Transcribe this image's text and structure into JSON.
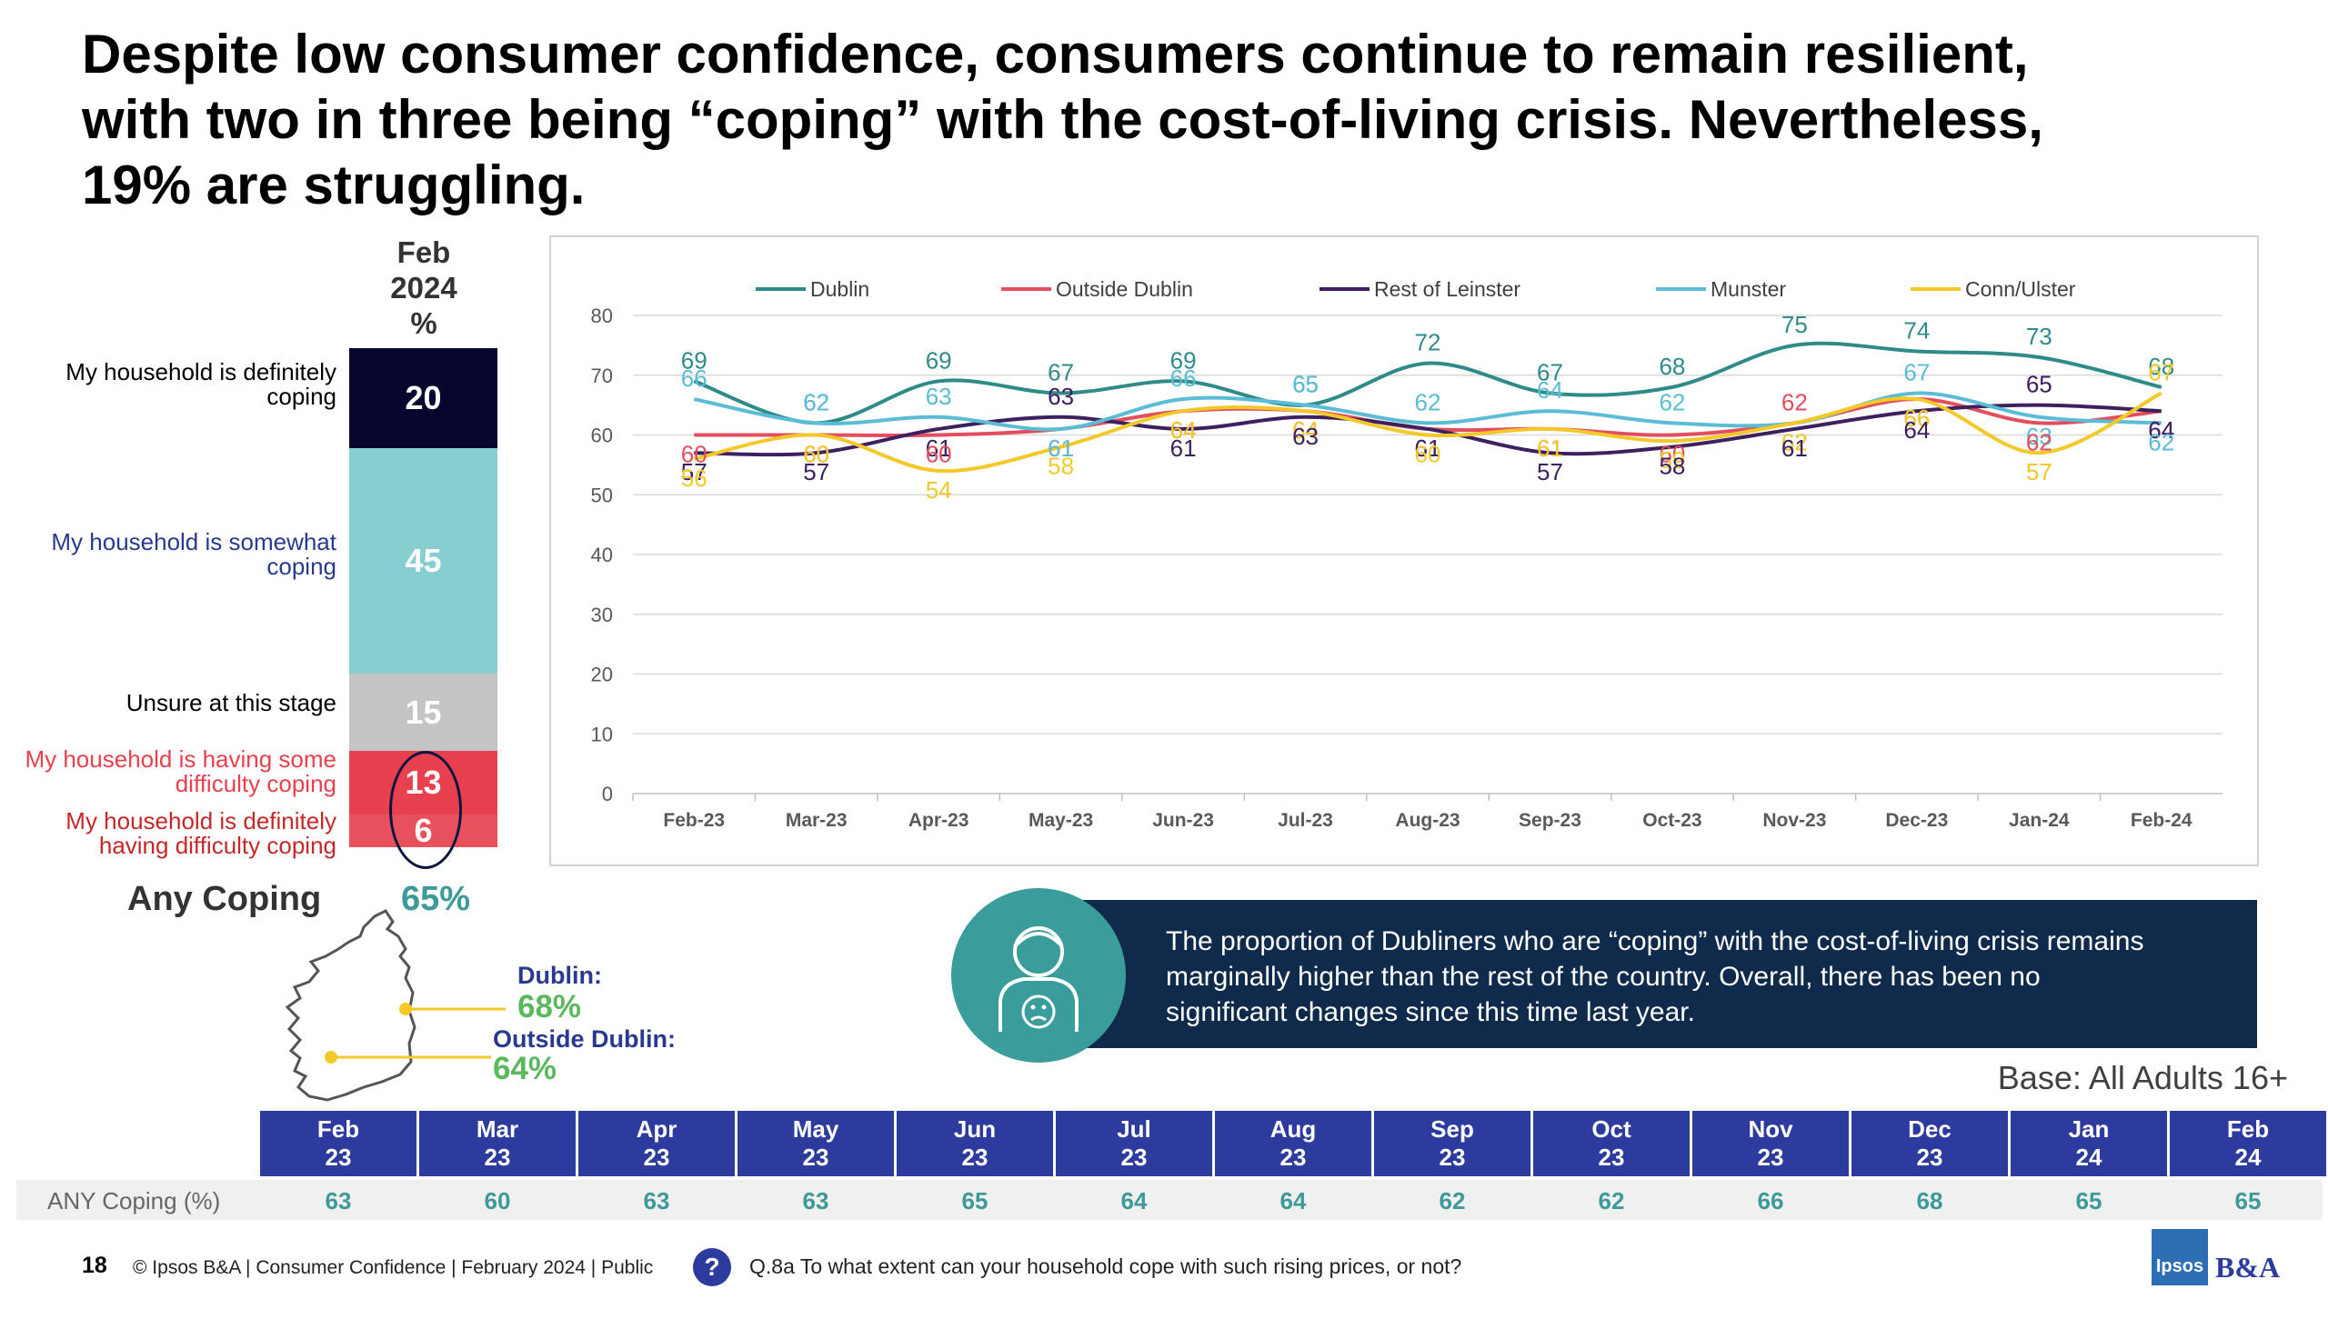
{
  "title": {
    "line1": "Despite low consumer confidence, consumers continue to remain resilient,",
    "line2": "with two in three being “coping” with the cost-of-living crisis. Nevertheless,",
    "line3": "19% are struggling."
  },
  "stack": {
    "header": [
      "Feb",
      "2024",
      "%"
    ],
    "segments": [
      {
        "label": [
          "My household is definitely",
          "coping"
        ],
        "value": "20",
        "share": 20,
        "color": "#06062e",
        "label_color": "#000000"
      },
      {
        "label": [
          "My household is somewhat",
          "coping"
        ],
        "value": "45",
        "share": 45,
        "color": "#86cecf",
        "label_color": "#2a3990"
      },
      {
        "label": [
          "Unsure at this stage"
        ],
        "value": "15",
        "share": 15,
        "color": "#c4c4c4",
        "label_color": "#000000"
      },
      {
        "label": [
          "My household is having some",
          "difficulty coping"
        ],
        "value": "13",
        "share": 13,
        "color": "#e8404f",
        "label_color": "#e8404f"
      },
      {
        "label": [
          "My household is definitely",
          "having difficulty coping"
        ],
        "value": "6",
        "share": 6,
        "color": "#e8505e",
        "label_color": "#c62828"
      }
    ]
  },
  "any_coping": {
    "label": "Any Coping",
    "value": "65%"
  },
  "regions": {
    "dublin_label": "Dublin:",
    "dublin_value": "68%",
    "outside_label": "Outside Dublin:",
    "outside_value": "64%"
  },
  "chart_data": {
    "type": "line",
    "x": [
      "Feb-23",
      "Mar-23",
      "Apr-23",
      "May-23",
      "Jun-23",
      "Jul-23",
      "Aug-23",
      "Sep-23",
      "Oct-23",
      "Nov-23",
      "Dec-23",
      "Jan-24",
      "Feb-24"
    ],
    "ylim": [
      0,
      80
    ],
    "yticks": [
      0,
      10,
      20,
      30,
      40,
      50,
      60,
      70,
      80
    ],
    "grid": true,
    "legend_position": "top",
    "series": [
      {
        "name": "Dublin",
        "color": "#2e8b87",
        "values": [
          69,
          62,
          69,
          67,
          69,
          65,
          72,
          67,
          68,
          75,
          74,
          73,
          68
        ]
      },
      {
        "name": "Outside Dublin",
        "color": "#e24e5e",
        "values": [
          60,
          60,
          60,
          61,
          64,
          64,
          61,
          61,
          60,
          62,
          66,
          62,
          64
        ]
      },
      {
        "name": "Rest of Leinster",
        "color": "#3d2060",
        "values": [
          57,
          57,
          61,
          63,
          61,
          63,
          61,
          57,
          58,
          61,
          64,
          65,
          64
        ]
      },
      {
        "name": "Munster",
        "color": "#5bbcd6",
        "values": [
          66,
          62,
          63,
          61,
          66,
          65,
          62,
          64,
          62,
          62,
          67,
          63,
          62
        ]
      },
      {
        "name": "Conn/Ulster",
        "color": "#f2c928",
        "values": [
          56,
          60,
          54,
          58,
          64,
          64,
          60,
          61,
          59,
          62,
          66,
          57,
          67
        ]
      }
    ]
  },
  "callout": {
    "line1": "The proportion of Dubliners who are “coping” with the cost-of-living crisis remains",
    "line2": "marginally higher than the rest of the country. Overall, there has been no",
    "line3": "significant changes since this time last year."
  },
  "base_note": "Base: All Adults 16+",
  "table": {
    "row_label": "ANY Coping (%)",
    "columns": [
      {
        "month": "Feb",
        "year": "23",
        "value": "63"
      },
      {
        "month": "Mar",
        "year": "23",
        "value": "60"
      },
      {
        "month": "Apr",
        "year": "23",
        "value": "63"
      },
      {
        "month": "May",
        "year": "23",
        "value": "63"
      },
      {
        "month": "Jun",
        "year": "23",
        "value": "65"
      },
      {
        "month": "Jul",
        "year": "23",
        "value": "64"
      },
      {
        "month": "Aug",
        "year": "23",
        "value": "64"
      },
      {
        "month": "Sep",
        "year": "23",
        "value": "62"
      },
      {
        "month": "Oct",
        "year": "23",
        "value": "62"
      },
      {
        "month": "Nov",
        "year": "23",
        "value": "66"
      },
      {
        "month": "Dec",
        "year": "23",
        "value": "68"
      },
      {
        "month": "Jan",
        "year": "24",
        "value": "65"
      },
      {
        "month": "Feb",
        "year": "24",
        "value": "65"
      }
    ]
  },
  "footer": {
    "page_number": "18",
    "text": "© Ipsos B&A | Consumer Confidence | February 2024 | Public",
    "question_mark": "?",
    "question": "Q.8a To what extent can your household cope with such rising prices, or not?",
    "logo_text": "Ipsos",
    "logo_suffix": "B&A"
  }
}
